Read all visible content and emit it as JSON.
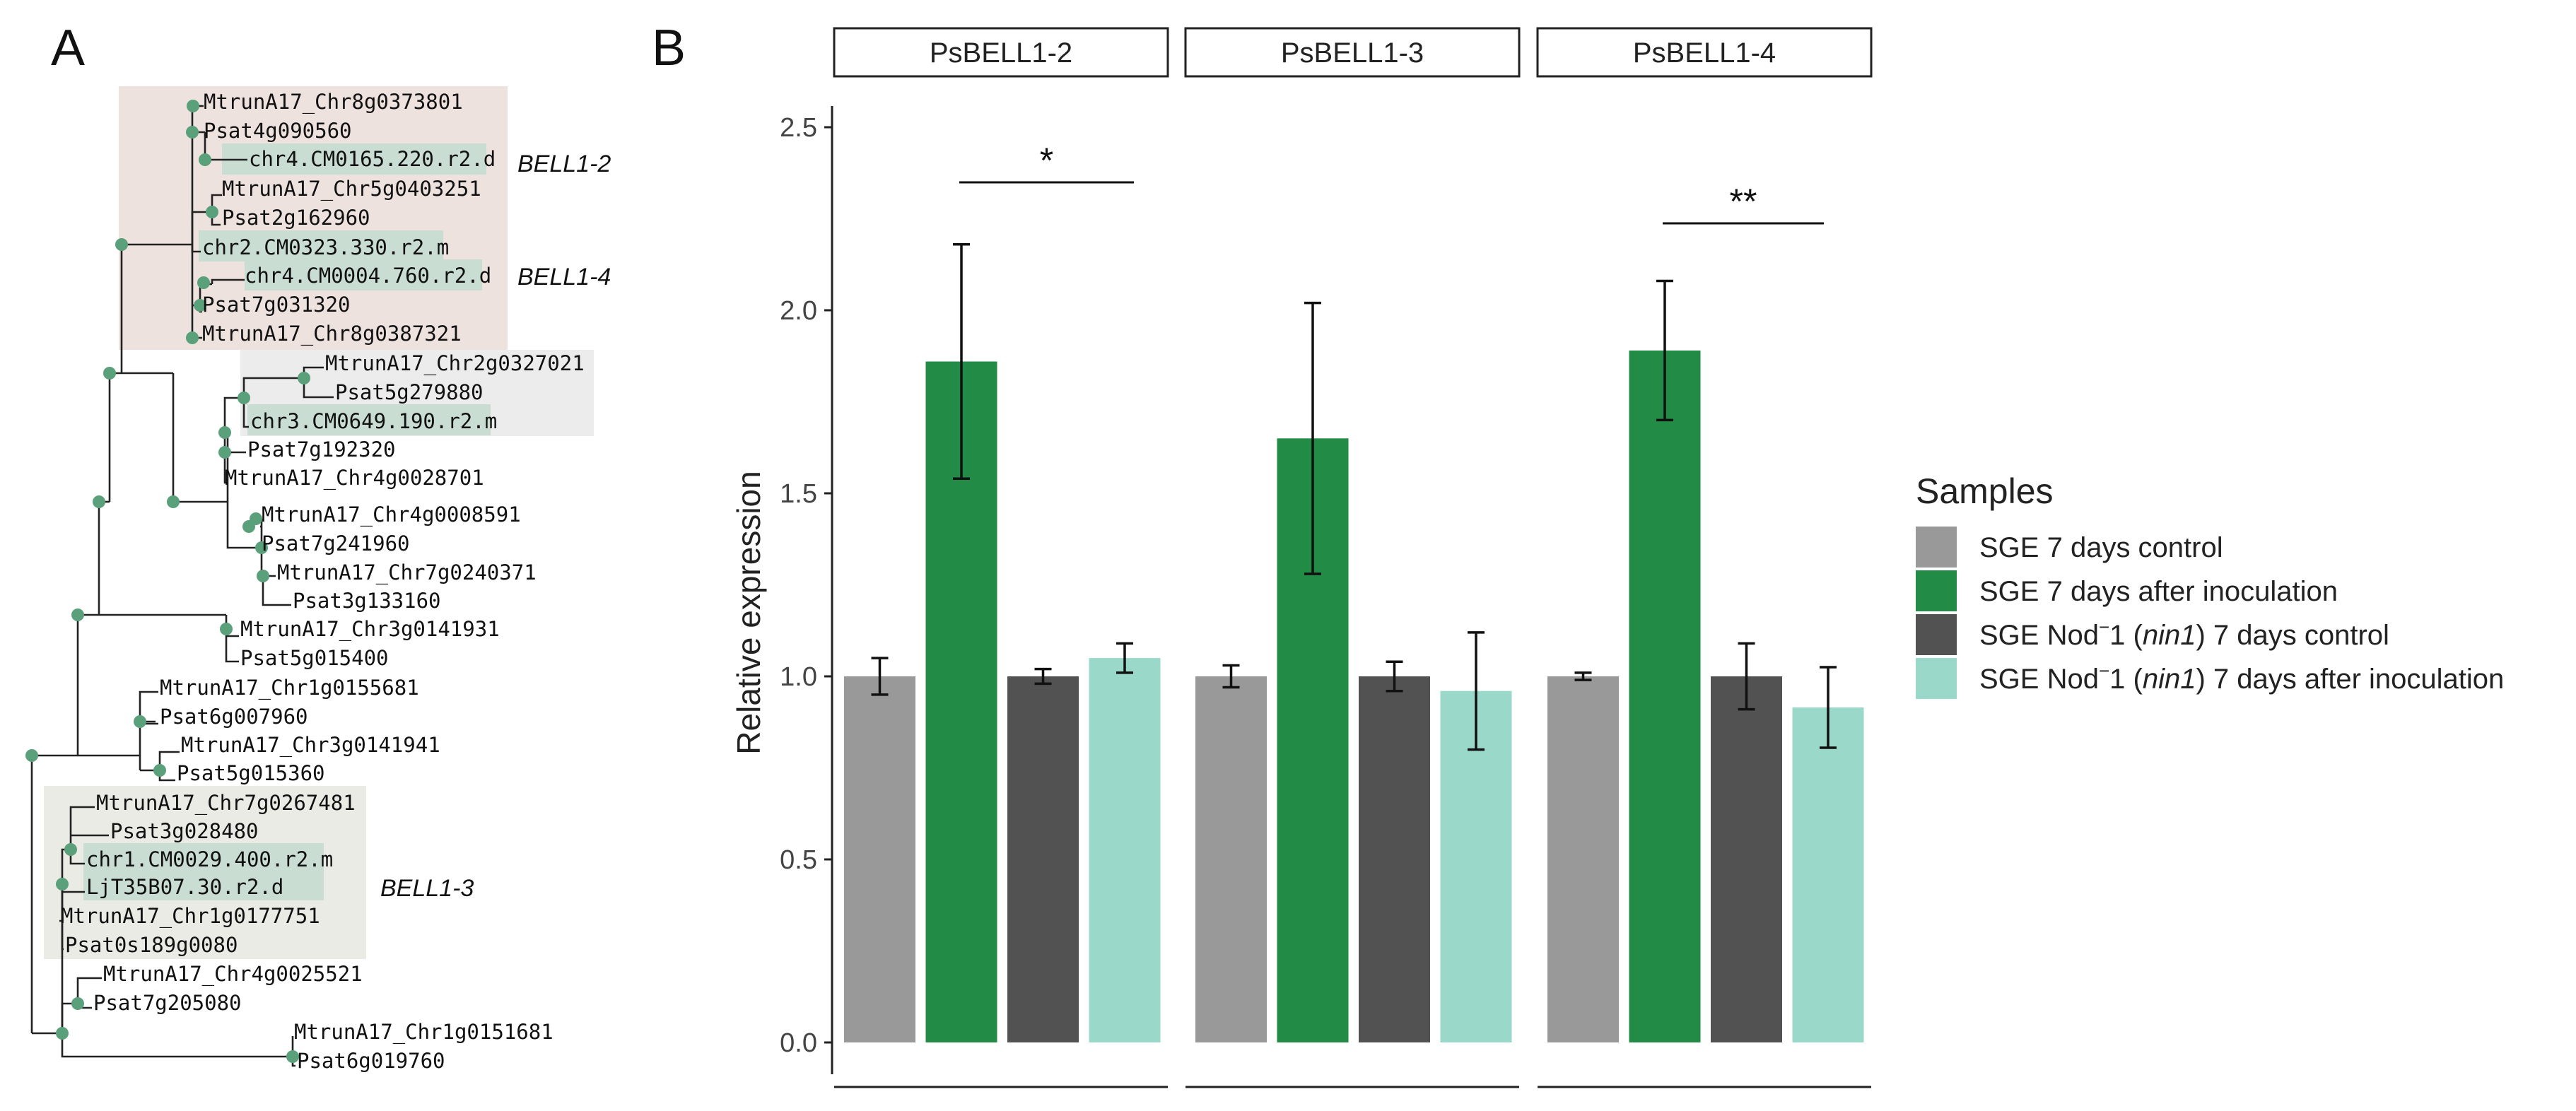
{
  "panels": {
    "a_label": "A",
    "b_label": "B"
  },
  "tree": {
    "clade_labels": {
      "bell1_2": "BELL1-2",
      "bell1_4": "BELL1-4",
      "bell1_3": "BELL1-3"
    },
    "leaves": [
      "MtrunA17_Chr8g0373801",
      "Psat4g090560",
      "chr4.CM0165.220.r2.d",
      "MtrunA17_Chr5g0403251",
      "Psat2g162960",
      "chr2.CM0323.330.r2.m",
      "chr4.CM0004.760.r2.d",
      "Psat7g031320",
      "MtrunA17_Chr8g0387321",
      "MtrunA17_Chr2g0327021",
      "Psat5g279880",
      "chr3.CM0649.190.r2.m",
      "Psat7g192320",
      "MtrunA17_Chr4g0028701",
      "MtrunA17_Chr4g0008591",
      "Psat7g241960",
      "MtrunA17_Chr7g0240371",
      "Psat3g133160",
      "MtrunA17_Chr3g0141931",
      "Psat5g015400",
      "MtrunA17_Chr1g0155681",
      "Psat6g007960",
      "MtrunA17_Chr3g0141941",
      "Psat5g015360",
      "MtrunA17_Chr7g0267481",
      "Psat3g028480",
      "chr1.CM0029.400.r2.m",
      "LjT35B07.30.r2.d",
      "MtrunA17_Chr1g0177751",
      "Psat0s189g0080",
      "MtrunA17_Chr4g0025521",
      "Psat7g205080",
      "MtrunA17_Chr1g0151681",
      "Psat6g019760"
    ]
  },
  "chart_data": {
    "type": "bar",
    "facets": [
      "PsBELL1-2",
      "PsBELL1-3",
      "PsBELL1-4"
    ],
    "ylabel": "Relative expression",
    "xlabel": "",
    "ylim": [
      0,
      2.6
    ],
    "yticks": [
      "0.0",
      "0.5",
      "1.0",
      "1.5",
      "2.0",
      "2.5"
    ],
    "legend_title": "Samples",
    "legend_position": "right",
    "series": [
      {
        "name": "SGE 7 days control",
        "color": "#999999",
        "values": [
          1.0,
          1.0,
          1.0
        ],
        "err": [
          0.05,
          0.03,
          0.01
        ]
      },
      {
        "name": "SGE 7 days after inoculation",
        "color": "#228b45",
        "values": [
          1.86,
          1.65,
          1.89
        ],
        "err": [
          0.32,
          0.37,
          0.19
        ]
      },
      {
        "name": "SGE Nod−1 (nin1) 7 days control",
        "color": "#525252",
        "values": [
          1.0,
          1.0,
          1.0
        ],
        "err": [
          0.02,
          0.04,
          0.09
        ]
      },
      {
        "name": "SGE Nod−1 (nin1) 7 days after inoculation",
        "color": "#9ad8c9",
        "values": [
          1.05,
          0.96,
          0.915
        ],
        "err": [
          0.04,
          0.16,
          0.11
        ]
      }
    ],
    "legend_labels": [
      {
        "pre": "SGE 7 days control",
        "sup": "",
        "mid": "",
        "ital": "",
        "post": ""
      },
      {
        "pre": "SGE 7 days after inoculation",
        "sup": "",
        "mid": "",
        "ital": "",
        "post": ""
      },
      {
        "pre": "SGE Nod",
        "sup": "−",
        "mid": "1 (",
        "ital": "nin1",
        "post": ") 7 days control"
      },
      {
        "pre": "SGE Nod",
        "sup": "−",
        "mid": "1 (",
        "ital": "nin1",
        "post": ") 7 days after inoculation"
      }
    ],
    "significance": [
      {
        "facet": "PsBELL1-2",
        "label": "*"
      },
      {
        "facet": "PsBELL1-4",
        "label": "**"
      }
    ]
  }
}
